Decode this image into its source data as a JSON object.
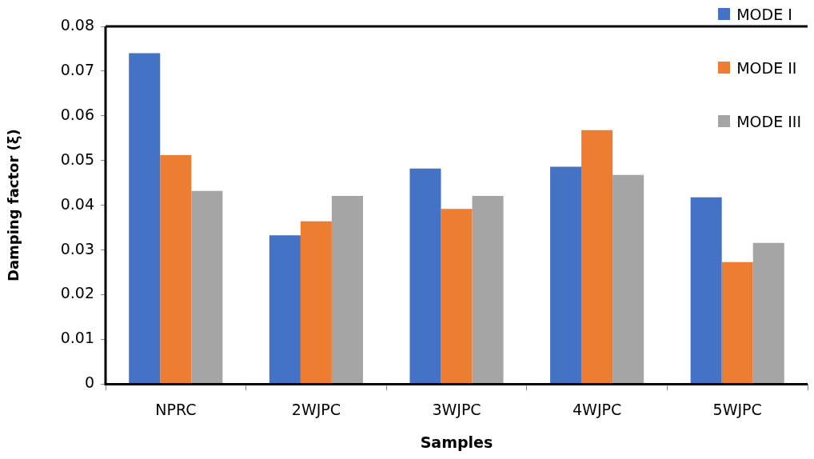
{
  "chart_data": {
    "type": "bar",
    "xlabel": "Samples",
    "ylabel": "Damping factor (ξ)",
    "categories": [
      "NPRC",
      "2WJPC",
      "3WJPC",
      "4WJPC",
      "5WJPC"
    ],
    "series": [
      {
        "name": "MODE I",
        "color": "#4472c4",
        "values": [
          0.074,
          0.0333,
          0.0482,
          0.0486,
          0.0418
        ]
      },
      {
        "name": "MODE II",
        "color": "#ed7d31",
        "values": [
          0.0512,
          0.0364,
          0.0392,
          0.0568,
          0.0273
        ]
      },
      {
        "name": "MODE III",
        "color": "#a5a5a5",
        "values": [
          0.0432,
          0.0421,
          0.0421,
          0.0468,
          0.0316
        ]
      }
    ],
    "ylim": [
      0,
      0.08
    ],
    "yticks": [
      0,
      0.01,
      0.02,
      0.03,
      0.04,
      0.05,
      0.06,
      0.07,
      0.08
    ],
    "grid": false,
    "legend": "top right"
  }
}
